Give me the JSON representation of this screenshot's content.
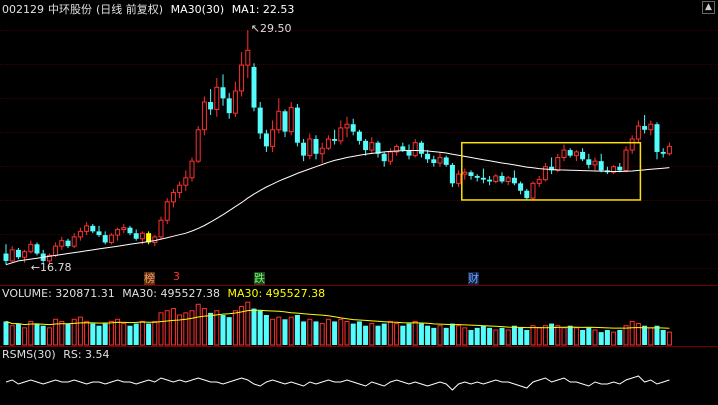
{
  "main_panel": {
    "stock_code": "002129",
    "stock_name": "中环股份",
    "period": "(日线 前复权)",
    "ma_name": "MA30(30)",
    "ma_value": "MA1: 22.53",
    "high_label": "29.50",
    "low_label": "16.78"
  },
  "event_markers": [
    {
      "text": "榜",
      "color": "#ff9966"
    },
    {
      "text": "3",
      "color": "#ff3333"
    },
    {
      "text": "跌",
      "color": "#66ff66"
    },
    {
      "text": "财",
      "color": "#6fa8ff"
    }
  ],
  "volume_panel": {
    "label": "VOLUME: 320871.31",
    "ma1": "MA30: 495527.38",
    "ma2": "MA30: 495527.38"
  },
  "rsms_panel": {
    "label": "RSMS(30)",
    "value": "RS: 3.54"
  },
  "colors": {
    "up": "#ff3030",
    "down": "#54fcfc",
    "ma": "#ffffff",
    "vol_ma": "#ffff00",
    "highlight_box": "#ffe000",
    "special_bar": "#ffff00"
  },
  "chart_data": {
    "type": "candlestick",
    "y_high": 29.5,
    "y_low": 16.78,
    "candles": [
      [
        17.4,
        17.9,
        16.8,
        17.0
      ],
      [
        17.0,
        17.8,
        16.9,
        17.6
      ],
      [
        17.6,
        17.7,
        17.1,
        17.2
      ],
      [
        17.2,
        17.6,
        16.9,
        17.5
      ],
      [
        17.5,
        18.1,
        17.4,
        17.9
      ],
      [
        17.9,
        18.0,
        17.3,
        17.4
      ],
      [
        17.4,
        17.6,
        16.9,
        17.0
      ],
      [
        17.0,
        17.4,
        16.8,
        17.3
      ],
      [
        17.3,
        18.0,
        17.2,
        17.8
      ],
      [
        17.8,
        18.3,
        17.6,
        18.1
      ],
      [
        18.1,
        18.2,
        17.7,
        17.8
      ],
      [
        17.8,
        18.5,
        17.7,
        18.3
      ],
      [
        18.3,
        18.8,
        18.1,
        18.6
      ],
      [
        18.6,
        19.1,
        18.4,
        18.9
      ],
      [
        18.9,
        19.0,
        18.5,
        18.6
      ],
      [
        18.6,
        18.9,
        18.3,
        18.4
      ],
      [
        18.4,
        18.6,
        17.9,
        18.0
      ],
      [
        18.0,
        18.5,
        17.9,
        18.4
      ],
      [
        18.4,
        18.8,
        18.1,
        18.7
      ],
      [
        18.7,
        19.0,
        18.5,
        18.8
      ],
      [
        18.8,
        18.9,
        18.4,
        18.5
      ],
      [
        18.5,
        18.7,
        18.1,
        18.2
      ],
      [
        18.2,
        18.6,
        17.9,
        18.5
      ],
      [
        18.5,
        18.6,
        17.9,
        18.0
      ],
      [
        18.0,
        18.4,
        17.8,
        18.3
      ],
      [
        18.3,
        19.4,
        18.2,
        19.2
      ],
      [
        19.2,
        20.4,
        19.0,
        20.2
      ],
      [
        20.2,
        20.9,
        19.9,
        20.7
      ],
      [
        20.7,
        21.3,
        20.4,
        21.1
      ],
      [
        21.1,
        21.9,
        20.8,
        21.5
      ],
      [
        21.5,
        22.6,
        21.3,
        22.4
      ],
      [
        22.4,
        24.3,
        22.3,
        24.1
      ],
      [
        24.1,
        25.9,
        23.8,
        25.6
      ],
      [
        25.6,
        26.3,
        24.9,
        25.2
      ],
      [
        25.2,
        26.9,
        24.8,
        26.4
      ],
      [
        26.4,
        27.1,
        25.4,
        25.8
      ],
      [
        25.8,
        26.1,
        24.7,
        25.0
      ],
      [
        25.0,
        26.7,
        24.8,
        26.2
      ],
      [
        26.2,
        28.3,
        25.9,
        27.6
      ],
      [
        27.6,
        29.5,
        26.9,
        28.4
      ],
      [
        27.5,
        27.7,
        25.1,
        25.3
      ],
      [
        25.3,
        25.6,
        23.6,
        23.9
      ],
      [
        23.9,
        24.1,
        22.9,
        23.2
      ],
      [
        23.2,
        24.6,
        22.9,
        24.1
      ],
      [
        24.1,
        25.8,
        23.9,
        25.1
      ],
      [
        25.1,
        25.2,
        23.7,
        24.0
      ],
      [
        24.0,
        25.6,
        23.8,
        25.3
      ],
      [
        25.3,
        25.5,
        23.2,
        23.4
      ],
      [
        23.4,
        23.6,
        22.4,
        22.7
      ],
      [
        22.7,
        23.9,
        22.5,
        23.6
      ],
      [
        23.6,
        23.8,
        22.5,
        22.8
      ],
      [
        22.8,
        23.4,
        22.3,
        23.1
      ],
      [
        23.1,
        23.8,
        23.0,
        23.6
      ],
      [
        23.6,
        24.1,
        23.3,
        23.5
      ],
      [
        23.5,
        24.6,
        23.3,
        24.2
      ],
      [
        24.2,
        24.8,
        23.7,
        24.4
      ],
      [
        24.4,
        24.7,
        23.8,
        24.0
      ],
      [
        24.0,
        24.1,
        23.3,
        23.5
      ],
      [
        23.5,
        23.6,
        22.7,
        23.0
      ],
      [
        23.0,
        23.7,
        22.8,
        23.4
      ],
      [
        23.4,
        23.5,
        22.6,
        22.8
      ],
      [
        22.8,
        22.9,
        22.1,
        22.4
      ],
      [
        22.4,
        23.1,
        22.2,
        22.9
      ],
      [
        22.9,
        23.3,
        22.7,
        23.2
      ],
      [
        23.2,
        23.4,
        22.9,
        23.0
      ],
      [
        23.0,
        23.3,
        22.5,
        22.7
      ],
      [
        22.7,
        23.6,
        22.6,
        23.4
      ],
      [
        23.4,
        23.5,
        22.6,
        22.8
      ],
      [
        22.8,
        23.0,
        22.3,
        22.5
      ],
      [
        22.5,
        22.7,
        22.1,
        22.3
      ],
      [
        22.3,
        22.9,
        22.1,
        22.6
      ],
      [
        22.6,
        22.7,
        22.1,
        22.2
      ],
      [
        22.2,
        22.3,
        21.0,
        21.2
      ],
      [
        21.2,
        21.9,
        21.0,
        21.7
      ],
      [
        21.7,
        22.0,
        21.4,
        21.8
      ],
      [
        21.8,
        21.9,
        21.4,
        21.6
      ],
      [
        21.6,
        21.7,
        21.3,
        21.5
      ],
      [
        21.5,
        22.0,
        21.2,
        21.4
      ],
      [
        21.4,
        21.6,
        21.1,
        21.3
      ],
      [
        21.3,
        21.7,
        21.2,
        21.6
      ],
      [
        21.6,
        21.8,
        21.2,
        21.3
      ],
      [
        21.3,
        21.6,
        21.1,
        21.5
      ],
      [
        21.5,
        21.9,
        21.1,
        21.2
      ],
      [
        21.2,
        21.3,
        20.6,
        20.8
      ],
      [
        20.8,
        20.9,
        20.3,
        20.4
      ],
      [
        20.4,
        21.3,
        20.3,
        21.2
      ],
      [
        21.2,
        21.6,
        21.0,
        21.4
      ],
      [
        21.4,
        22.3,
        21.3,
        22.1
      ],
      [
        22.1,
        22.6,
        21.7,
        21.9
      ],
      [
        21.9,
        22.8,
        21.8,
        22.6
      ],
      [
        22.6,
        23.3,
        22.4,
        23.0
      ],
      [
        23.0,
        23.1,
        22.6,
        22.7
      ],
      [
        22.7,
        23.0,
        22.4,
        22.9
      ],
      [
        22.9,
        23.1,
        22.4,
        22.5
      ],
      [
        22.5,
        22.8,
        22.0,
        22.2
      ],
      [
        22.2,
        22.6,
        21.9,
        22.4
      ],
      [
        22.4,
        22.8,
        21.8,
        21.9
      ],
      [
        21.9,
        22.1,
        21.7,
        21.8
      ],
      [
        21.8,
        22.2,
        21.7,
        22.1
      ],
      [
        22.1,
        22.3,
        21.8,
        21.9
      ],
      [
        21.9,
        23.2,
        21.8,
        23.0
      ],
      [
        23.0,
        23.8,
        22.8,
        23.6
      ],
      [
        23.6,
        24.6,
        23.4,
        24.3
      ],
      [
        24.3,
        24.9,
        23.9,
        24.1
      ],
      [
        24.1,
        24.6,
        23.8,
        24.4
      ],
      [
        24.4,
        24.5,
        22.5,
        22.9
      ],
      [
        22.9,
        23.1,
        22.6,
        22.8
      ],
      [
        22.8,
        23.4,
        22.7,
        23.2
      ]
    ],
    "ma30": [
      16.8,
      16.9,
      17.0,
      17.05,
      17.1,
      17.15,
      17.2,
      17.25,
      17.3,
      17.35,
      17.4,
      17.45,
      17.5,
      17.55,
      17.6,
      17.65,
      17.7,
      17.75,
      17.8,
      17.85,
      17.9,
      17.95,
      18.0,
      18.05,
      18.1,
      18.18,
      18.26,
      18.34,
      18.42,
      18.5,
      18.62,
      18.76,
      18.92,
      19.1,
      19.3,
      19.5,
      19.72,
      19.94,
      20.16,
      20.4,
      20.62,
      20.82,
      21.0,
      21.16,
      21.32,
      21.46,
      21.6,
      21.74,
      21.86,
      21.98,
      22.1,
      22.22,
      22.34,
      22.44,
      22.52,
      22.6,
      22.66,
      22.72,
      22.78,
      22.82,
      22.86,
      22.9,
      22.93,
      22.95,
      22.97,
      22.98,
      22.98,
      22.97,
      22.95,
      22.92,
      22.88,
      22.84,
      22.78,
      22.72,
      22.66,
      22.6,
      22.54,
      22.48,
      22.42,
      22.36,
      22.3,
      22.25,
      22.2,
      22.14,
      22.08,
      22.04,
      22.0,
      21.97,
      21.95,
      21.93,
      21.92,
      21.91,
      21.9,
      21.89,
      21.88,
      21.87,
      21.86,
      21.85,
      21.84,
      21.84,
      21.85,
      21.87,
      21.9,
      21.93,
      21.96,
      21.99,
      22.02,
      22.05
    ],
    "volume": [
      0.55,
      0.45,
      0.5,
      0.4,
      0.55,
      0.5,
      0.45,
      0.4,
      0.6,
      0.55,
      0.5,
      0.6,
      0.65,
      0.55,
      0.5,
      0.45,
      0.5,
      0.55,
      0.6,
      0.5,
      0.45,
      0.5,
      0.55,
      0.5,
      0.55,
      0.75,
      0.8,
      0.85,
      0.7,
      0.75,
      0.8,
      0.95,
      0.85,
      0.75,
      0.8,
      0.7,
      0.65,
      0.8,
      0.9,
      1.0,
      0.85,
      0.8,
      0.7,
      0.6,
      0.65,
      0.6,
      0.65,
      0.7,
      0.55,
      0.6,
      0.55,
      0.5,
      0.6,
      0.55,
      0.6,
      0.55,
      0.5,
      0.55,
      0.45,
      0.5,
      0.45,
      0.5,
      0.55,
      0.5,
      0.45,
      0.5,
      0.55,
      0.5,
      0.45,
      0.4,
      0.45,
      0.4,
      0.5,
      0.45,
      0.4,
      0.35,
      0.4,
      0.45,
      0.4,
      0.35,
      0.4,
      0.35,
      0.45,
      0.4,
      0.35,
      0.45,
      0.4,
      0.45,
      0.5,
      0.45,
      0.4,
      0.45,
      0.4,
      0.35,
      0.4,
      0.35,
      0.3,
      0.35,
      0.3,
      0.35,
      0.45,
      0.55,
      0.5,
      0.45,
      0.4,
      0.45,
      0.35,
      0.3
    ],
    "rsms": [
      0.5,
      0.55,
      0.45,
      0.5,
      0.55,
      0.5,
      0.45,
      0.5,
      0.55,
      0.5,
      0.5,
      0.55,
      0.5,
      0.45,
      0.5,
      0.5,
      0.45,
      0.5,
      0.55,
      0.5,
      0.5,
      0.45,
      0.5,
      0.55,
      0.5,
      0.6,
      0.55,
      0.5,
      0.55,
      0.5,
      0.55,
      0.6,
      0.55,
      0.5,
      0.5,
      0.45,
      0.5,
      0.55,
      0.6,
      0.55,
      0.45,
      0.4,
      0.5,
      0.55,
      0.5,
      0.45,
      0.5,
      0.45,
      0.4,
      0.5,
      0.45,
      0.5,
      0.55,
      0.5,
      0.5,
      0.55,
      0.5,
      0.45,
      0.4,
      0.5,
      0.45,
      0.4,
      0.5,
      0.55,
      0.5,
      0.45,
      0.5,
      0.45,
      0.4,
      0.45,
      0.5,
      0.45,
      0.3,
      0.45,
      0.5,
      0.45,
      0.5,
      0.45,
      0.5,
      0.55,
      0.5,
      0.5,
      0.45,
      0.4,
      0.35,
      0.5,
      0.55,
      0.6,
      0.5,
      0.55,
      0.6,
      0.5,
      0.5,
      0.45,
      0.4,
      0.5,
      0.45,
      0.45,
      0.5,
      0.45,
      0.55,
      0.6,
      0.65,
      0.5,
      0.55,
      0.45,
      0.5,
      0.55
    ]
  }
}
